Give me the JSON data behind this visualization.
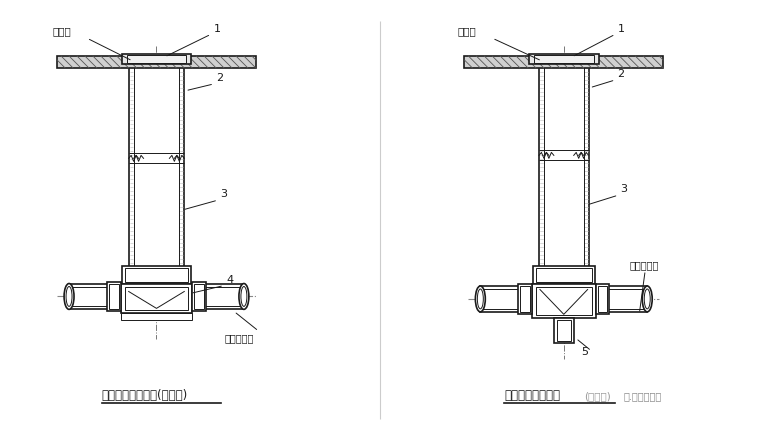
{
  "bg_color": "#ffffff",
  "line_color": "#1a1a1a",
  "title1": "非防护井盖检查井(有流槽)",
  "title2": "非防护井盖检查井(无流槽)",
  "label_nonroad": "非通路",
  "label_buried": "埋地排水管",
  "watermark": "水.电知识平台",
  "fig_width": 7.6,
  "fig_height": 4.24,
  "dpi": 100
}
